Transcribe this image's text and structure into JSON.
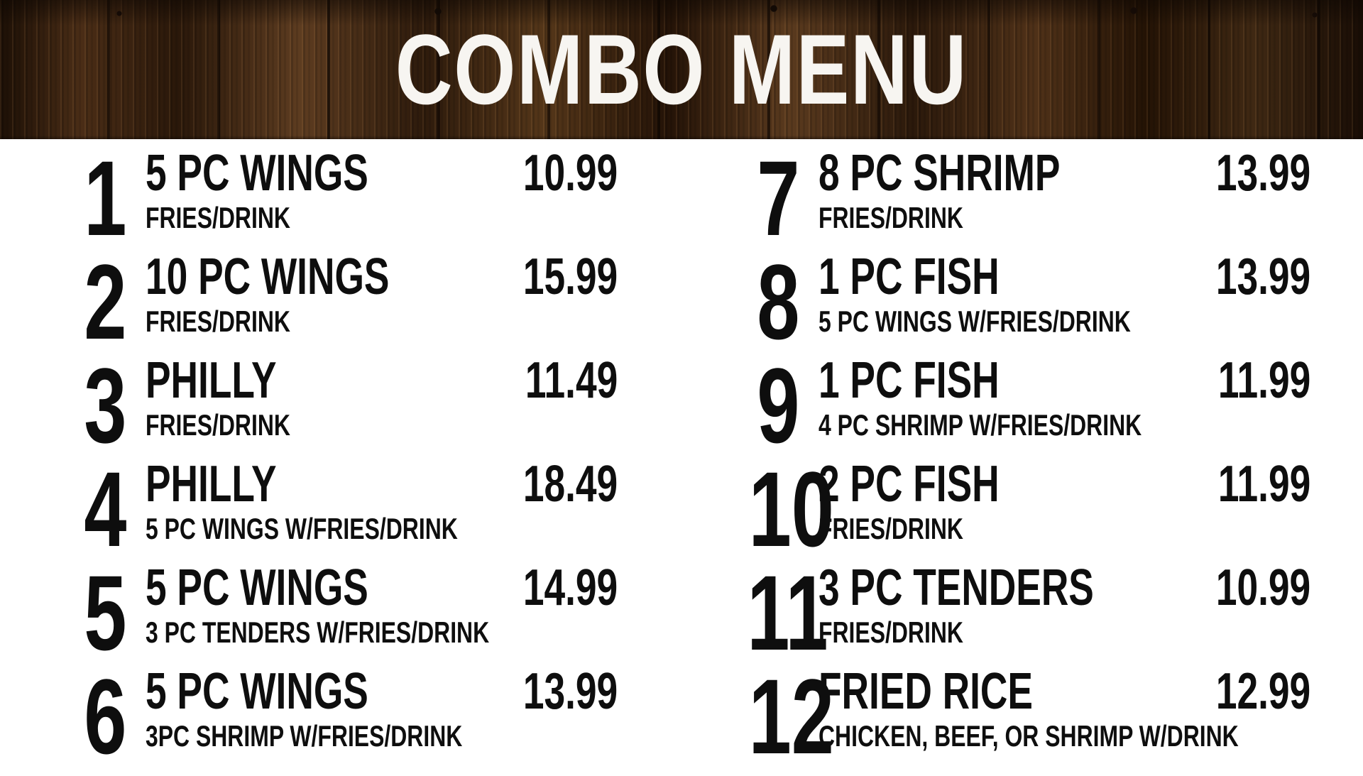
{
  "title": "COMBO MENU",
  "theme": {
    "background": "#ffffff",
    "text_color": "#0e0e0e",
    "title_color": "#f7f5f1",
    "wood_dark": "#1d1006",
    "wood_mid": "#33200f",
    "wood_light": "#5d3c20"
  },
  "columns": [
    {
      "side": "left",
      "items": [
        {
          "number": "1",
          "name": "5 PC WINGS",
          "detail": "FRIES/DRINK",
          "price": "10.99"
        },
        {
          "number": "2",
          "name": "10 PC WINGS",
          "detail": "FRIES/DRINK",
          "price": "15.99"
        },
        {
          "number": "3",
          "name": "PHILLY",
          "detail": "FRIES/DRINK",
          "price": "11.49"
        },
        {
          "number": "4",
          "name": "PHILLY",
          "detail": "5 PC WINGS W/FRIES/DRINK",
          "price": "18.49"
        },
        {
          "number": "5",
          "name": "5 PC WINGS",
          "detail": "3 PC TENDERS W/FRIES/DRINK",
          "price": "14.99"
        },
        {
          "number": "6",
          "name": "5 PC WINGS",
          "detail": "3PC SHRIMP W/FRIES/DRINK",
          "price": "13.99"
        }
      ]
    },
    {
      "side": "right",
      "items": [
        {
          "number": "7",
          "name": "8 PC SHRIMP",
          "detail": "FRIES/DRINK",
          "price": "13.99"
        },
        {
          "number": "8",
          "name": "1 PC FISH",
          "detail": "5 PC WINGS W/FRIES/DRINK",
          "price": "13.99"
        },
        {
          "number": "9",
          "name": "1 PC FISH",
          "detail": "4 PC SHRIMP W/FRIES/DRINK",
          "price": "11.99"
        },
        {
          "number": "10",
          "name": "2 PC FISH",
          "detail": "FRIES/DRINK",
          "price": "11.99"
        },
        {
          "number": "11",
          "name": "3 PC TENDERS",
          "detail": "FRIES/DRINK",
          "price": "10.99"
        },
        {
          "number": "12",
          "name": "FRIED RICE",
          "detail": "CHICKEN, BEEF, OR SHRIMP W/DRINK",
          "price": "12.99"
        }
      ]
    }
  ]
}
